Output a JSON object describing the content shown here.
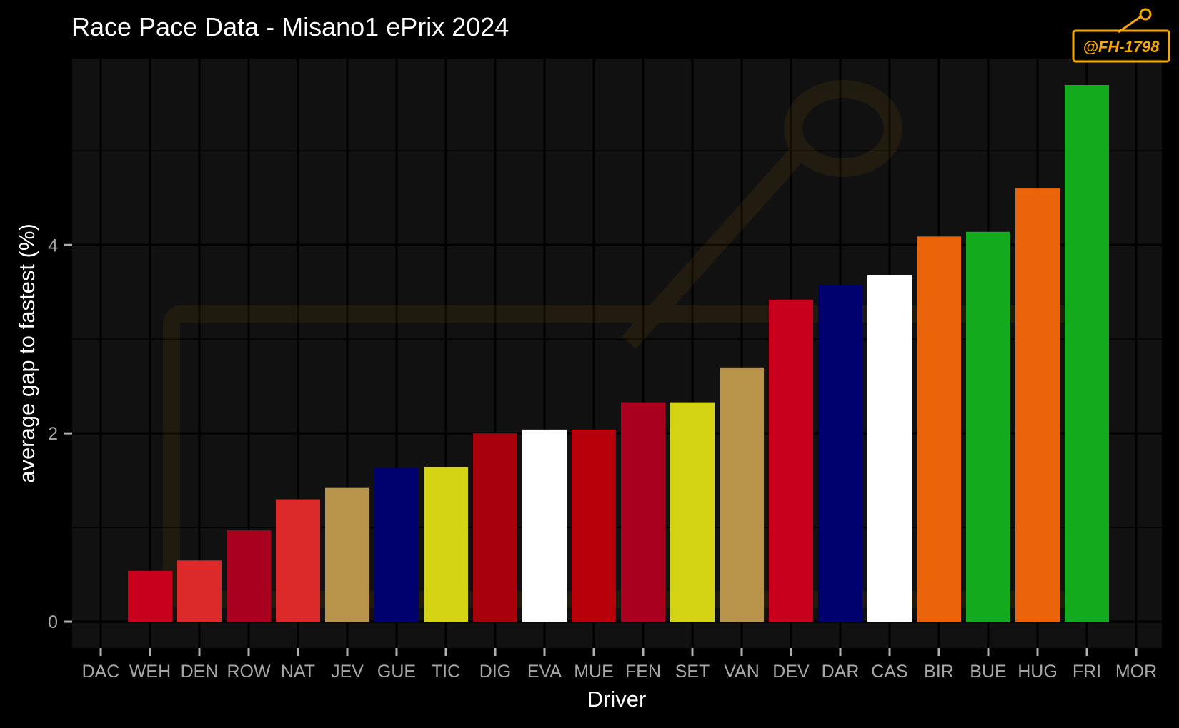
{
  "chart_data": {
    "type": "bar",
    "title": "Race Pace Data - Misano1 ePrix 2024",
    "xlabel": "Driver",
    "ylabel": "average gap to fastest (%)",
    "ylim": [
      -0.28,
      5.98
    ],
    "yticks": [
      0,
      2,
      4
    ],
    "grid": true,
    "legend": "none",
    "categories": [
      "DAC",
      "WEH",
      "DEN",
      "ROW",
      "NAT",
      "JEV",
      "GUE",
      "TIC",
      "DIG",
      "EVA",
      "MUE",
      "FEN",
      "SET",
      "VAN",
      "DEV",
      "DAR",
      "CAS",
      "BIR",
      "BUE",
      "HUG",
      "FRI",
      "MOR"
    ],
    "values": [
      0,
      0.54,
      0.65,
      0.97,
      1.3,
      1.42,
      1.63,
      1.64,
      2.0,
      2.04,
      2.04,
      2.33,
      2.33,
      2.7,
      3.42,
      3.57,
      3.68,
      4.09,
      4.14,
      4.6,
      5.7,
      0
    ],
    "colors": [
      "#b8b8b8",
      "#c8001e",
      "#dc2a2a",
      "#a8001e",
      "#dc2a2a",
      "#b8934a",
      "#00006e",
      "#d4d414",
      "#a8000a",
      "#ffffff",
      "#b8000a",
      "#a8001e",
      "#d4d414",
      "#b8934a",
      "#c8001e",
      "#00006e",
      "#ffffff",
      "#ec640a",
      "#14aa1e",
      "#ec640a",
      "#14aa1e",
      "#14aa1e"
    ]
  },
  "watermark": {
    "text": "@FH-1798",
    "color": "#f5a800"
  }
}
